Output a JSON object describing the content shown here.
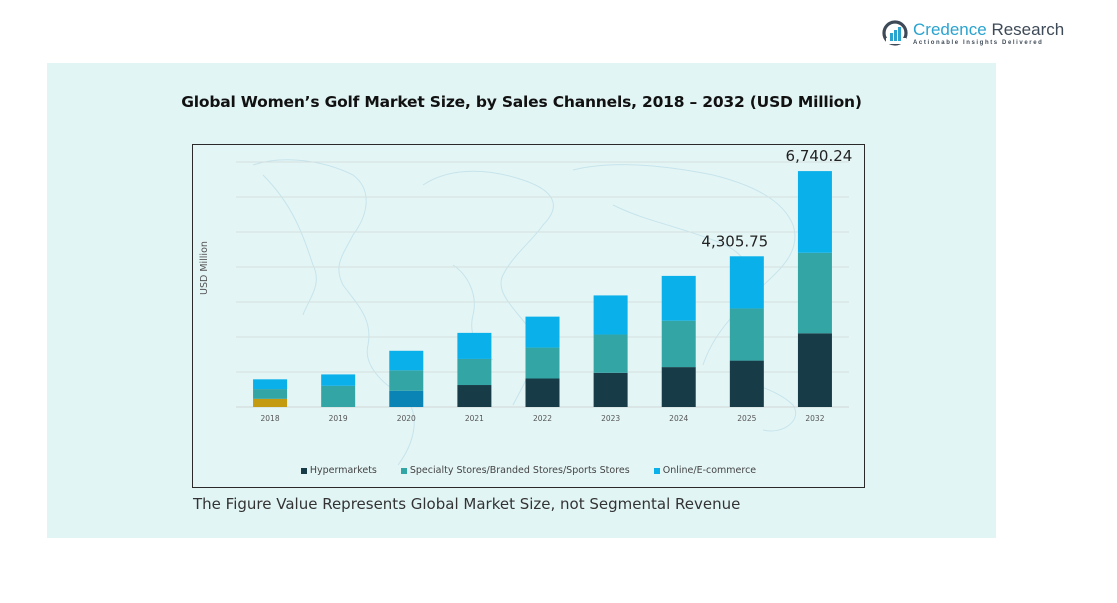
{
  "brand": {
    "name_part1": "Credence",
    "name_part2": " Research",
    "tagline": "Actionable Insights Delivered",
    "icon": "bar-chart-circle-logo-icon"
  },
  "footnote": "The Figure Value Represents Global Market Size, not Segmental Revenue",
  "colors": {
    "panel_bg": "#e2f5f5",
    "hypermarkets": "#173c48",
    "specialty": "#34a5a5",
    "online": "#0ab0ea",
    "hypermarkets_2018": "#c49a10",
    "hypermarkets_2020": "#0a84b5"
  },
  "chart_data": {
    "type": "bar",
    "stacked": true,
    "title": "Global Women’s Golf Market Size, by Sales Channels, 2018 – 2032 (USD Million)",
    "xlabel": "",
    "ylabel": "USD Million",
    "categories": [
      "2018",
      "2019",
      "2020",
      "2021",
      "2022",
      "2023",
      "2024",
      "2025",
      "2032"
    ],
    "series": [
      {
        "name": "Hypermarkets",
        "values": [
          233,
          0,
          465,
          628,
          814,
          977,
          1140,
          1326,
          2106
        ]
      },
      {
        "name": "Specialty Stores/Branded Stores/Sports Stores",
        "values": [
          279,
          605,
          582,
          745,
          884,
          1094,
          1326,
          1490,
          2301
        ]
      },
      {
        "name": "Online/E-commerce",
        "values": [
          279,
          326,
          559,
          745,
          884,
          1117,
          1280,
          1490,
          2333
        ]
      }
    ],
    "annotations": [
      {
        "category": "2025",
        "text": "4,305.75"
      },
      {
        "category": "2032",
        "text": "6,740.24"
      }
    ],
    "ylim": [
      0,
      7000
    ],
    "grid": true,
    "y_tick_labels_shown": false,
    "legend_position": "bottom"
  }
}
